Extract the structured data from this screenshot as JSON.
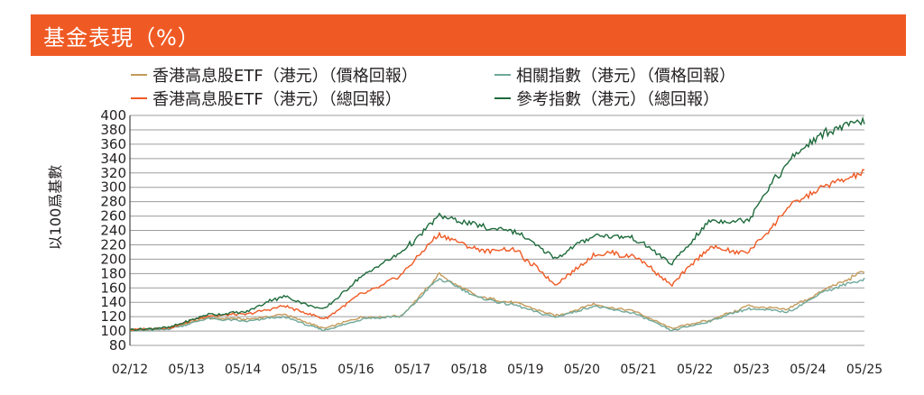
{
  "header": {
    "title": "基金表現（%）"
  },
  "colors": {
    "header_bg": "#ef5a24",
    "fund_price": "#c49a5a",
    "index_price": "#6fa89a",
    "fund_total": "#ef5a24",
    "index_total": "#1e6b3c",
    "grid": "#9d9d9d"
  },
  "chart_data": {
    "type": "line",
    "ylabel": "以100爲基數",
    "ylim": [
      80,
      400
    ],
    "yticks": [
      80,
      100,
      120,
      140,
      160,
      180,
      200,
      220,
      240,
      260,
      280,
      300,
      320,
      340,
      360,
      380,
      400
    ],
    "grid": "horizontal",
    "legend_position": "top",
    "x_labels": [
      "02/12",
      "05/13",
      "05/14",
      "05/15",
      "05/16",
      "05/17",
      "05/18",
      "05/19",
      "05/20",
      "05/21",
      "05/22",
      "05/23",
      "05/24",
      "05/25"
    ],
    "series": [
      {
        "name": "香港高息股ETF（港元）（價格回報）",
        "key": "fund_price",
        "values": [
          102,
          103,
          118,
          116,
          123,
          103,
          119,
          121,
          178,
          148,
          138,
          121,
          137,
          128,
          103,
          115,
          135,
          130,
          159,
          182
        ]
      },
      {
        "name": "相關指數（港元）（價格回報）",
        "key": "index_price",
        "values": [
          101,
          102,
          118,
          114,
          120,
          101,
          117,
          120,
          174,
          146,
          136,
          118,
          135,
          125,
          101,
          113,
          132,
          126,
          156,
          172
        ]
      },
      {
        "name": "香港高息股ETF（港元）（總回報）",
        "key": "fund_total",
        "values": [
          102,
          104,
          122,
          124,
          136,
          116,
          152,
          176,
          236,
          214,
          212,
          165,
          208,
          206,
          165,
          215,
          210,
          270,
          300,
          322
        ]
      },
      {
        "name": "參考指數（港元）（總回報）",
        "key": "index_total",
        "values": [
          102,
          104,
          123,
          127,
          150,
          129,
          178,
          208,
          260,
          246,
          240,
          200,
          233,
          232,
          195,
          252,
          256,
          335,
          380,
          395
        ]
      }
    ]
  }
}
